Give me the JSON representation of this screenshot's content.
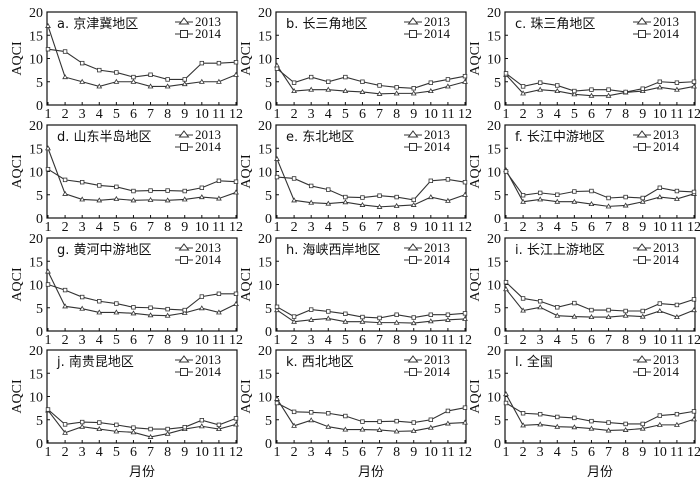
{
  "chart_data": [
    {
      "type": "line",
      "title": "a. 京津冀地区",
      "ylabel": "AQCI",
      "xlabel": "",
      "x": [
        1,
        2,
        3,
        4,
        5,
        6,
        7,
        8,
        9,
        10,
        11,
        12
      ],
      "ylim": [
        0,
        20
      ],
      "yticks": [
        0,
        5,
        10,
        15,
        20
      ],
      "series": [
        {
          "name": "2013",
          "marker": "triangle",
          "values": [
            17,
            6,
            5,
            4,
            5,
            5,
            4,
            4,
            4.5,
            5,
            5,
            6.5
          ]
        },
        {
          "name": "2014",
          "marker": "square",
          "values": [
            12,
            11.5,
            9,
            7.5,
            7,
            6,
            6.5,
            5.5,
            5.5,
            9,
            9,
            9.2
          ]
        }
      ]
    },
    {
      "type": "line",
      "title": "b. 长三角地区",
      "ylabel": "AQCI",
      "xlabel": "",
      "x": [
        1,
        2,
        3,
        4,
        5,
        6,
        7,
        8,
        9,
        10,
        11,
        12
      ],
      "ylim": [
        0,
        20
      ],
      "yticks": [
        0,
        5,
        10,
        15,
        20
      ],
      "series": [
        {
          "name": "2013",
          "marker": "triangle",
          "values": [
            8.5,
            3,
            3.3,
            3.3,
            3,
            2.8,
            2.4,
            2.5,
            2.5,
            3,
            4,
            5
          ]
        },
        {
          "name": "2014",
          "marker": "square",
          "values": [
            7.8,
            4.8,
            6,
            5,
            6,
            5,
            4.2,
            3.8,
            3.6,
            4.8,
            5.5,
            6.2
          ]
        }
      ]
    },
    {
      "type": "line",
      "title": "c. 珠三角地区",
      "ylabel": "AQCI",
      "xlabel": "",
      "x": [
        1,
        2,
        3,
        4,
        5,
        6,
        7,
        8,
        9,
        10,
        11,
        12
      ],
      "ylim": [
        0,
        20
      ],
      "yticks": [
        0,
        5,
        10,
        15,
        20
      ],
      "series": [
        {
          "name": "2013",
          "marker": "triangle",
          "values": [
            6.5,
            2.5,
            3.3,
            3,
            2.3,
            2,
            2,
            2.7,
            3,
            3.8,
            3.3,
            4
          ]
        },
        {
          "name": "2014",
          "marker": "square",
          "values": [
            6.8,
            4,
            4.8,
            4.2,
            3,
            3.3,
            3.3,
            2.8,
            3.5,
            5,
            4.8,
            5
          ]
        }
      ]
    },
    {
      "type": "line",
      "title": "d. 山东半岛地区",
      "ylabel": "AQCI",
      "xlabel": "",
      "x": [
        1,
        2,
        3,
        4,
        5,
        6,
        7,
        8,
        9,
        10,
        11,
        12
      ],
      "ylim": [
        0,
        20
      ],
      "yticks": [
        0,
        5,
        10,
        15,
        20
      ],
      "series": [
        {
          "name": "2013",
          "marker": "triangle",
          "values": [
            15,
            5.2,
            4,
            3.8,
            4.1,
            3.8,
            3.9,
            3.8,
            4,
            4.5,
            4.2,
            5.5
          ]
        },
        {
          "name": "2014",
          "marker": "square",
          "values": [
            10.5,
            8.2,
            7.7,
            7,
            6.7,
            5.8,
            5.9,
            5.9,
            5.8,
            6.5,
            8,
            7.8
          ]
        }
      ]
    },
    {
      "type": "line",
      "title": "e. 东北地区",
      "ylabel": "AQCI",
      "xlabel": "",
      "x": [
        1,
        2,
        3,
        4,
        5,
        6,
        7,
        8,
        9,
        10,
        11,
        12
      ],
      "ylim": [
        0,
        20
      ],
      "yticks": [
        0,
        5,
        10,
        15,
        20
      ],
      "series": [
        {
          "name": "2013",
          "marker": "triangle",
          "values": [
            12.7,
            3.8,
            3.3,
            3.1,
            3.4,
            2.8,
            2.4,
            2.6,
            2.8,
            4.5,
            3.7,
            5
          ]
        },
        {
          "name": "2014",
          "marker": "square",
          "values": [
            8.8,
            8.5,
            6.9,
            6.1,
            4.5,
            4.4,
            4.8,
            4.5,
            3.9,
            8,
            8.3,
            7.7
          ]
        }
      ]
    },
    {
      "type": "line",
      "title": "f. 长江中游地区",
      "ylabel": "AQCI",
      "xlabel": "",
      "x": [
        1,
        2,
        3,
        4,
        5,
        6,
        7,
        8,
        9,
        10,
        11,
        12
      ],
      "ylim": [
        0,
        20
      ],
      "yticks": [
        0,
        5,
        10,
        15,
        20
      ],
      "series": [
        {
          "name": "2013",
          "marker": "triangle",
          "values": [
            10.3,
            3.5,
            4,
            3.5,
            3.5,
            3,
            2.5,
            2.7,
            3.5,
            4.5,
            4.1,
            5.2
          ]
        },
        {
          "name": "2014",
          "marker": "square",
          "values": [
            10,
            4.9,
            5.4,
            5,
            5.7,
            5.8,
            4.3,
            4.5,
            4.3,
            6.5,
            5.8,
            5.6
          ]
        }
      ]
    },
    {
      "type": "line",
      "title": "g. 黄河中游地区",
      "ylabel": "AQCI",
      "xlabel": "",
      "x": [
        1,
        2,
        3,
        4,
        5,
        6,
        7,
        8,
        9,
        10,
        11,
        12
      ],
      "ylim": [
        0,
        20
      ],
      "yticks": [
        0,
        5,
        10,
        15,
        20
      ],
      "series": [
        {
          "name": "2013",
          "marker": "triangle",
          "values": [
            12.8,
            5.3,
            4.8,
            4,
            4,
            3.8,
            3.4,
            3.3,
            3.9,
            4.9,
            4,
            5.8
          ]
        },
        {
          "name": "2014",
          "marker": "square",
          "values": [
            10,
            8.8,
            7.3,
            6.4,
            5.9,
            5.1,
            5,
            4.7,
            4.5,
            7.4,
            8,
            8
          ]
        }
      ]
    },
    {
      "type": "line",
      "title": "h. 海峡西岸地区",
      "ylabel": "AQCI",
      "xlabel": "",
      "x": [
        1,
        2,
        3,
        4,
        5,
        6,
        7,
        8,
        9,
        10,
        11,
        12
      ],
      "ylim": [
        0,
        20
      ],
      "yticks": [
        0,
        5,
        10,
        15,
        20
      ],
      "series": [
        {
          "name": "2013",
          "marker": "triangle",
          "values": [
            4.5,
            2,
            2.4,
            2.7,
            2,
            2,
            1.8,
            1.8,
            1.7,
            2.1,
            2.4,
            2.6
          ]
        },
        {
          "name": "2014",
          "marker": "square",
          "values": [
            5.2,
            3.1,
            4.6,
            4.2,
            3.7,
            3,
            2.8,
            3.5,
            2.9,
            3.5,
            3.5,
            3.8
          ]
        }
      ]
    },
    {
      "type": "line",
      "title": "i. 长江上游地区",
      "ylabel": "AQCI",
      "xlabel": "",
      "x": [
        1,
        2,
        3,
        4,
        5,
        6,
        7,
        8,
        9,
        10,
        11,
        12
      ],
      "ylim": [
        0,
        20
      ],
      "yticks": [
        0,
        5,
        10,
        15,
        20
      ],
      "series": [
        {
          "name": "2013",
          "marker": "triangle",
          "values": [
            9,
            4.4,
            5.1,
            3.3,
            3.1,
            3,
            3,
            3.3,
            3.1,
            4.3,
            3,
            4.5
          ]
        },
        {
          "name": "2014",
          "marker": "square",
          "values": [
            10.5,
            7,
            6.4,
            5.1,
            6,
            4.5,
            4.5,
            4.3,
            4.3,
            5.9,
            5.6,
            6.8
          ]
        }
      ]
    },
    {
      "type": "line",
      "title": "j. 南贵昆地区",
      "ylabel": "AQCI",
      "xlabel": "月份",
      "x": [
        1,
        2,
        3,
        4,
        5,
        6,
        7,
        8,
        9,
        10,
        11,
        12
      ],
      "ylim": [
        0,
        20
      ],
      "yticks": [
        0,
        5,
        10,
        15,
        20
      ],
      "series": [
        {
          "name": "2013",
          "marker": "triangle",
          "values": [
            7,
            2.2,
            3.5,
            3,
            2.5,
            2.3,
            1.3,
            2,
            3,
            3.6,
            3,
            4
          ]
        },
        {
          "name": "2014",
          "marker": "square",
          "values": [
            7.2,
            4,
            4.5,
            4.4,
            3.9,
            3.3,
            3,
            3,
            3.4,
            4.9,
            3.9,
            5.3
          ]
        }
      ]
    },
    {
      "type": "line",
      "title": "k. 西北地区",
      "ylabel": "AQCI",
      "xlabel": "月份",
      "x": [
        1,
        2,
        3,
        4,
        5,
        6,
        7,
        8,
        9,
        10,
        11,
        12
      ],
      "ylim": [
        0,
        20
      ],
      "yticks": [
        0,
        5,
        10,
        15,
        20
      ],
      "series": [
        {
          "name": "2013",
          "marker": "triangle",
          "values": [
            9.5,
            3.7,
            4.9,
            3.5,
            2.9,
            2.9,
            2.8,
            2.5,
            2.6,
            3.3,
            4.2,
            4.4
          ]
        },
        {
          "name": "2014",
          "marker": "square",
          "values": [
            8.6,
            6.7,
            6.6,
            6.4,
            5.8,
            4.6,
            4.6,
            4.7,
            4.4,
            5,
            6.9,
            7.6
          ]
        }
      ]
    },
    {
      "type": "line",
      "title": "l. 全国",
      "ylabel": "AQCI",
      "xlabel": "月份",
      "x": [
        1,
        2,
        3,
        4,
        5,
        6,
        7,
        8,
        9,
        10,
        11,
        12
      ],
      "ylim": [
        0,
        20
      ],
      "yticks": [
        0,
        5,
        10,
        15,
        20
      ],
      "series": [
        {
          "name": "2013",
          "marker": "triangle",
          "values": [
            10.5,
            3.8,
            4,
            3.5,
            3.4,
            3.1,
            2.7,
            2.8,
            3.1,
            3.9,
            3.9,
            5.1
          ]
        },
        {
          "name": "2014",
          "marker": "square",
          "values": [
            8.6,
            6.4,
            6.2,
            5.6,
            5.4,
            4.7,
            4.4,
            4.1,
            4.1,
            5.9,
            6.2,
            6.8
          ]
        }
      ]
    }
  ],
  "colors": {
    "line": "#333333",
    "axis": "#111111"
  }
}
